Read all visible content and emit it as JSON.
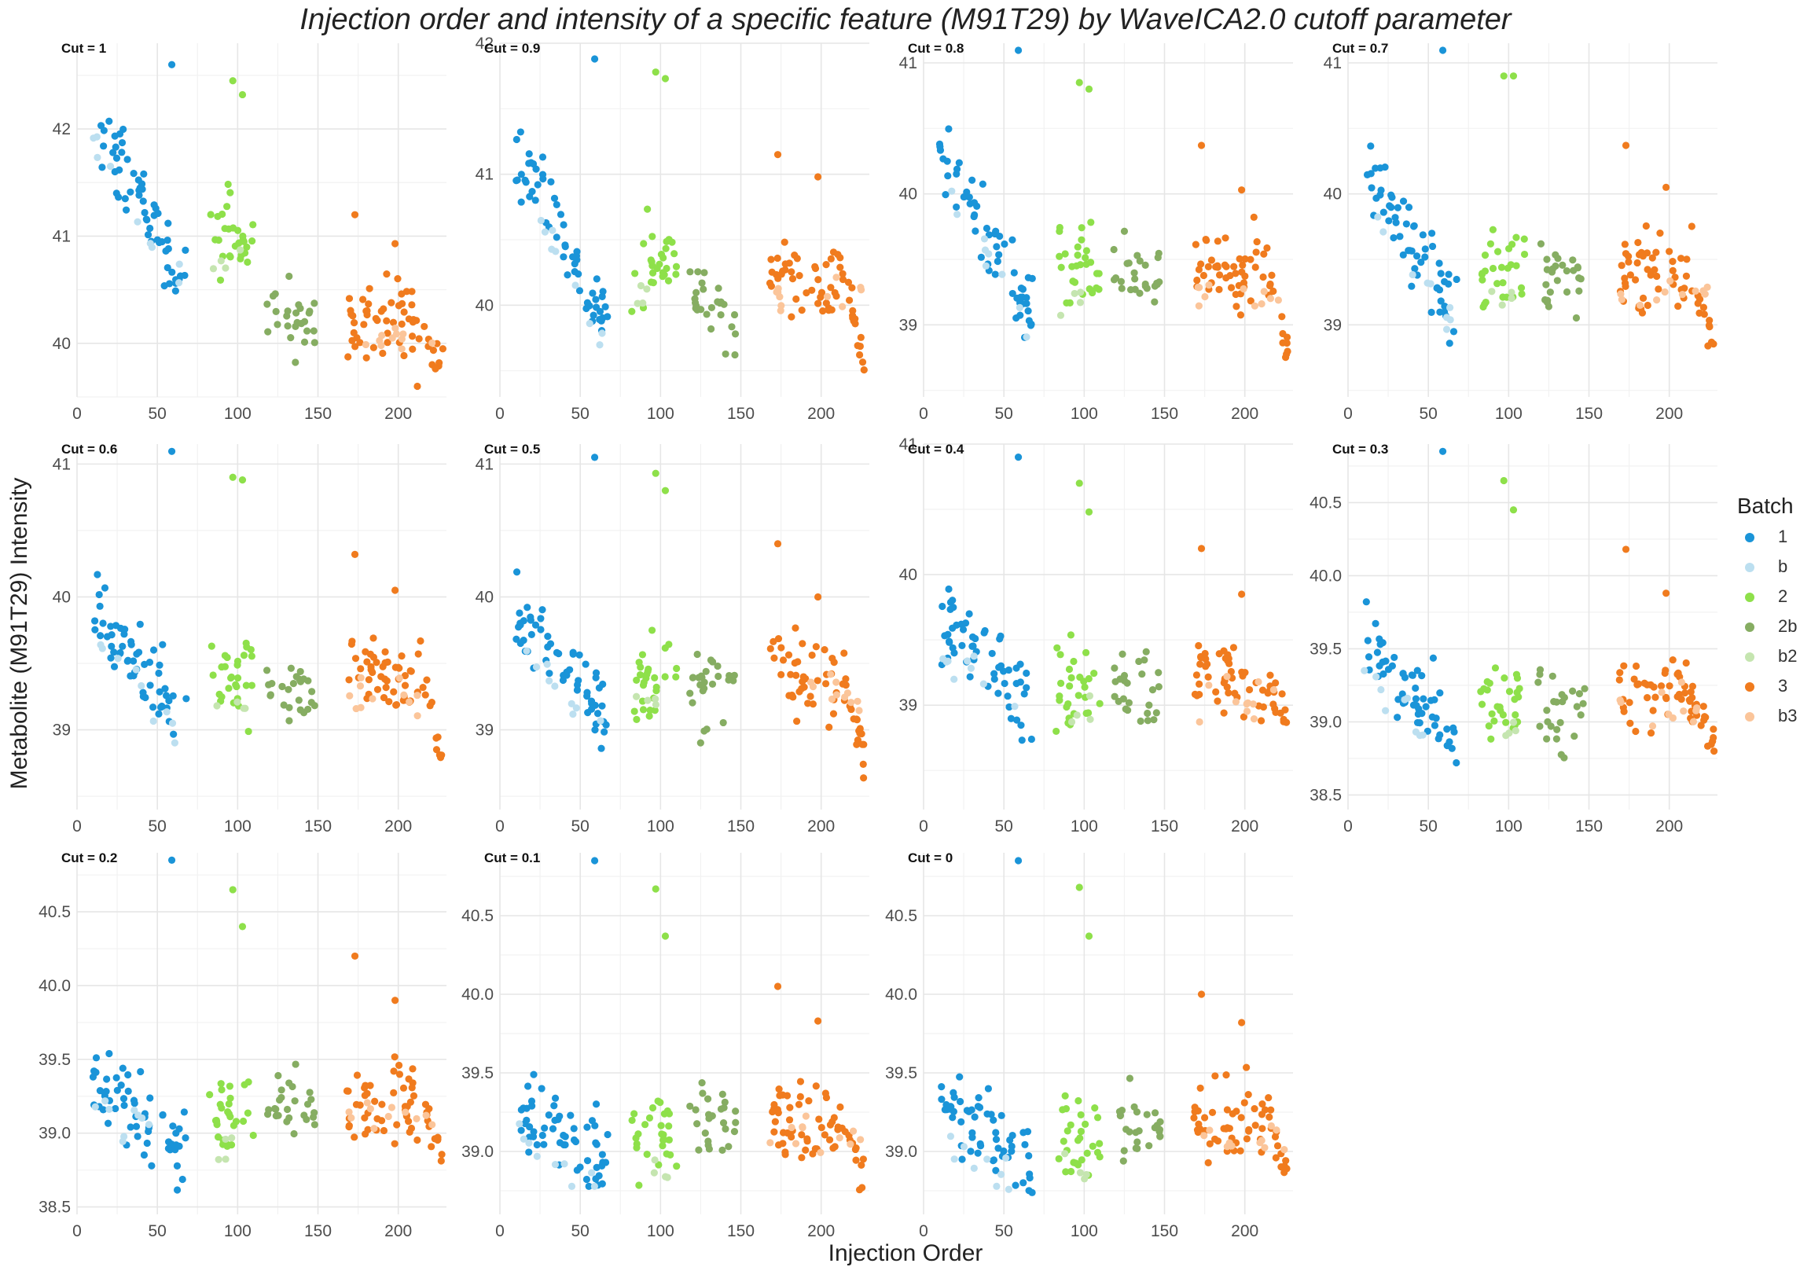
{
  "title": "Injection order and intensity of a specific feature (M91T29) by WaveICA2.0 cutoff parameter",
  "xlabel": "Injection Order",
  "ylabel": "Metabolite (M91T29) Intensity",
  "legend": {
    "title": "Batch",
    "items": [
      {
        "label": "1",
        "color": "#1a94d8"
      },
      {
        "label": "b",
        "color": "#bcdff0"
      },
      {
        "label": "2",
        "color": "#8ee04a"
      },
      {
        "label": "2b",
        "color": "#86ad62"
      },
      {
        "label": "b2",
        "color": "#c5e5b0"
      },
      {
        "label": "3",
        "color": "#f07b1e"
      },
      {
        "label": "b3",
        "color": "#fbc59a"
      }
    ]
  },
  "chart_data": [
    {
      "type": "scatter",
      "title": "Cut = 1",
      "xlim": [
        0,
        230
      ],
      "xticks": [
        0,
        50,
        100,
        150,
        200
      ],
      "ylim": [
        39.5,
        42.8
      ],
      "yticks": [
        40,
        41,
        42
      ],
      "ytick_labels": [
        "40",
        "41",
        "42"
      ],
      "anchors": {
        "s1": 42.05,
        "s1e": 40.6,
        "s2": 41.05,
        "s2b": 40.2,
        "s3": 40.2,
        "s3e": 39.75
      },
      "outliers": {
        "o1": 42.6,
        "o2a": 42.45,
        "o2b": 42.32,
        "o3a": 41.2,
        "o3b": 40.93
      }
    },
    {
      "type": "scatter",
      "title": "Cut = 0.9",
      "xlim": [
        0,
        230
      ],
      "xticks": [
        0,
        50,
        100,
        150,
        200
      ],
      "ylim": [
        39.3,
        42.0
      ],
      "yticks": [
        40,
        41,
        42
      ],
      "ytick_labels": [
        "40",
        "41",
        "42"
      ],
      "anchors": {
        "s1": 41.2,
        "s1e": 39.85,
        "s2": 40.3,
        "s2b": 40.0,
        "s3": 40.2,
        "s3e": 39.5
      },
      "outliers": {
        "o1": 41.88,
        "o2a": 41.78,
        "o2b": 41.73,
        "o3a": 41.15,
        "o3b": 40.98
      }
    },
    {
      "type": "scatter",
      "title": "Cut = 0.8",
      "xlim": [
        0,
        230
      ],
      "xticks": [
        0,
        50,
        100,
        150,
        200
      ],
      "ylim": [
        38.45,
        41.15
      ],
      "yticks": [
        39,
        40,
        41
      ],
      "ytick_labels": [
        "39",
        "40",
        "41"
      ],
      "anchors": {
        "s1": 40.3,
        "s1e": 39.1,
        "s2": 39.4,
        "s2b": 39.35,
        "s3": 39.4,
        "s3e": 38.7
      },
      "outliers": {
        "o1": 41.12,
        "o2a": 40.85,
        "o2b": 40.8,
        "o3a": 40.37,
        "o3b": 40.03
      }
    },
    {
      "type": "scatter",
      "title": "Cut = 0.7",
      "xlim": [
        0,
        230
      ],
      "xticks": [
        0,
        50,
        100,
        150,
        200
      ],
      "ylim": [
        38.45,
        41.15
      ],
      "yticks": [
        39,
        40,
        41
      ],
      "ytick_labels": [
        "39",
        "40",
        "41"
      ],
      "anchors": {
        "s1": 40.2,
        "s1e": 39.1,
        "s2": 39.4,
        "s2b": 39.35,
        "s3": 39.4,
        "s3e": 38.8
      },
      "outliers": {
        "o1": 41.12,
        "o2a": 40.9,
        "o2b": 40.9,
        "o3a": 40.37,
        "o3b": 40.05
      }
    },
    {
      "type": "scatter",
      "title": "Cut = 0.6",
      "xlim": [
        0,
        230
      ],
      "xticks": [
        0,
        50,
        100,
        150,
        200
      ],
      "ylim": [
        38.4,
        41.15
      ],
      "yticks": [
        39,
        40,
        41
      ],
      "ytick_labels": [
        "39",
        "40",
        "41"
      ],
      "anchors": {
        "s1": 39.9,
        "s1e": 39.1,
        "s2": 39.4,
        "s2b": 39.3,
        "s3": 39.4,
        "s3e": 38.75
      },
      "outliers": {
        "o1": 41.12,
        "o2a": 40.9,
        "o2b": 40.88,
        "o3a": 40.32,
        "o3b": 40.05
      }
    },
    {
      "type": "scatter",
      "title": "Cut = 0.5",
      "xlim": [
        0,
        230
      ],
      "xticks": [
        0,
        50,
        100,
        150,
        200
      ],
      "ylim": [
        38.4,
        41.15
      ],
      "yticks": [
        39,
        40,
        41
      ],
      "ytick_labels": [
        "39",
        "40",
        "41"
      ],
      "anchors": {
        "s1": 39.85,
        "s1e": 39.1,
        "s2": 39.4,
        "s2b": 39.3,
        "s3": 39.4,
        "s3e": 38.75
      },
      "outliers": {
        "o1": 41.05,
        "o2a": 40.93,
        "o2b": 40.8,
        "o3a": 40.4,
        "o3b": 40.0
      }
    },
    {
      "type": "scatter",
      "title": "Cut = 0.4",
      "xlim": [
        0,
        230
      ],
      "xticks": [
        0,
        50,
        100,
        150,
        200
      ],
      "ylim": [
        38.2,
        41.0
      ],
      "yticks": [
        39,
        40,
        41
      ],
      "ytick_labels": [
        "39",
        "40",
        "41"
      ],
      "anchors": {
        "s1": 39.65,
        "s1e": 39.0,
        "s2": 39.2,
        "s2b": 39.15,
        "s3": 39.2,
        "s3e": 38.8
      },
      "outliers": {
        "o1": 40.9,
        "o2a": 40.7,
        "o2b": 40.48,
        "o3a": 40.2,
        "o3b": 39.85
      }
    },
    {
      "type": "scatter",
      "title": "Cut = 0.3",
      "xlim": [
        0,
        230
      ],
      "xticks": [
        0,
        50,
        100,
        150,
        200
      ],
      "ylim": [
        38.4,
        40.9
      ],
      "yticks": [
        38.5,
        39.0,
        39.5,
        40.0,
        40.5
      ],
      "ytick_labels": [
        "38.5",
        "39.0",
        "39.5",
        "40.0",
        "40.5"
      ],
      "anchors": {
        "s1": 39.5,
        "s1e": 38.85,
        "s2": 39.1,
        "s2b": 39.1,
        "s3": 39.2,
        "s3e": 38.8
      },
      "outliers": {
        "o1": 40.85,
        "o2a": 40.65,
        "o2b": 40.45,
        "o3a": 40.18,
        "o3b": 39.88
      }
    },
    {
      "type": "scatter",
      "title": "Cut = 0.2",
      "xlim": [
        0,
        230
      ],
      "xticks": [
        0,
        50,
        100,
        150,
        200
      ],
      "ylim": [
        38.45,
        40.9
      ],
      "yticks": [
        38.5,
        39.0,
        39.5,
        40.0,
        40.5
      ],
      "ytick_labels": [
        "38.5",
        "39.0",
        "39.5",
        "40.0",
        "40.5"
      ],
      "anchors": {
        "s1": 39.4,
        "s1e": 38.9,
        "s2": 39.1,
        "s2b": 39.2,
        "s3": 39.2,
        "s3e": 38.8
      },
      "outliers": {
        "o1": 40.85,
        "o2a": 40.65,
        "o2b": 40.4,
        "o3a": 40.2,
        "o3b": 39.9
      }
    },
    {
      "type": "scatter",
      "title": "Cut = 0.1",
      "xlim": [
        0,
        230
      ],
      "xticks": [
        0,
        50,
        100,
        150,
        200
      ],
      "ylim": [
        38.6,
        40.9
      ],
      "yticks": [
        39.0,
        39.5,
        40.0,
        40.5
      ],
      "ytick_labels": [
        "39.0",
        "39.5",
        "40.0",
        "40.5"
      ],
      "anchors": {
        "s1": 39.3,
        "s1e": 38.9,
        "s2": 39.1,
        "s2b": 39.2,
        "s3": 39.2,
        "s3e": 38.8
      },
      "outliers": {
        "o1": 40.85,
        "o2a": 40.67,
        "o2b": 40.37,
        "o3a": 40.05,
        "o3b": 39.83
      }
    },
    {
      "type": "scatter",
      "title": "Cut = 0",
      "xlim": [
        0,
        230
      ],
      "xticks": [
        0,
        50,
        100,
        150,
        200
      ],
      "ylim": [
        38.6,
        40.9
      ],
      "yticks": [
        39.0,
        39.5,
        40.0,
        40.5
      ],
      "ytick_labels": [
        "39.0",
        "39.5",
        "40.0",
        "40.5"
      ],
      "anchors": {
        "s1": 39.3,
        "s1e": 38.9,
        "s2": 39.1,
        "s2b": 39.15,
        "s3": 39.2,
        "s3e": 38.8
      },
      "outliers": {
        "o1": 40.85,
        "o2a": 40.68,
        "o2b": 40.37,
        "o3a": 40.0,
        "o3b": 39.82
      }
    }
  ]
}
